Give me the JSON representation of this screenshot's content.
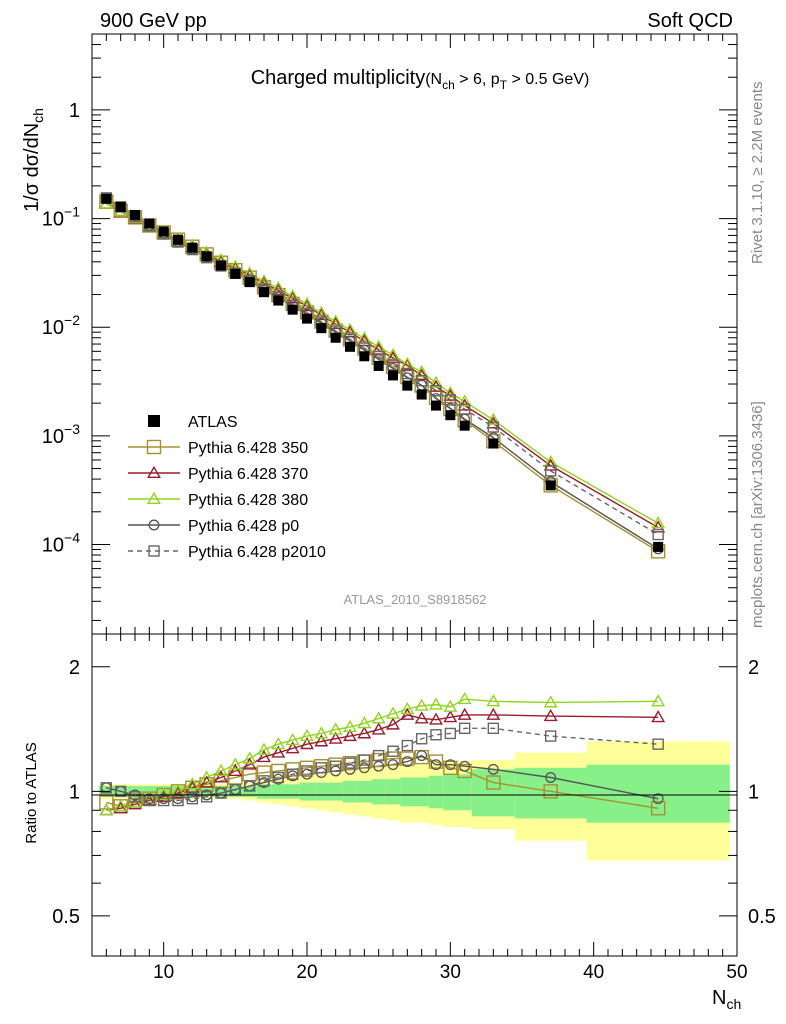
{
  "header": {
    "left": "900 GeV pp",
    "right": "Soft QCD"
  },
  "side": {
    "top": "Rivet 3.1.10, ≥ 2.2M events",
    "bottom": "mcplots.cern.ch [arXiv:1306.3436]"
  },
  "chart_data": {
    "type": "scatter",
    "title": {
      "main": "Charged multiplicity",
      "cond": "(N",
      "cond_sub1": "ch",
      "cond_mid": " > 6, p",
      "cond_sub2": "T",
      "cond_end": " > 0.5 GeV)"
    },
    "analysis_label": "ATLAS_2010_S8918562",
    "ylabel_main": "1/σ dσ/dN",
    "ylabel_sub": "ch",
    "ylabel_ratio": "Ratio to ATLAS",
    "xlabel_main": "N",
    "xlabel_sub": "ch",
    "xlim": [
      5,
      50
    ],
    "ylim_main": [
      1.5e-05,
      5
    ],
    "ylog_main": true,
    "ylim_ratio": [
      0.4,
      2.4
    ],
    "ylog_ratio": true,
    "x_ticks": [
      "10",
      "20",
      "30",
      "40",
      "50"
    ],
    "y_ticks_main": [
      {
        "base": "10",
        "exp": "−4"
      },
      {
        "base": "10",
        "exp": "−3"
      },
      {
        "base": "10",
        "exp": "−2"
      },
      {
        "base": "10",
        "exp": "−1"
      },
      {
        "base": "1",
        "exp": ""
      }
    ],
    "y_ticks_ratio": [
      "0.5",
      "1",
      "2"
    ],
    "x": [
      6,
      7,
      8,
      9,
      10,
      11,
      12,
      13,
      14,
      15,
      16,
      17,
      18,
      19,
      20,
      21,
      22,
      23,
      24,
      25,
      26,
      27,
      28,
      29,
      30,
      31,
      33,
      37,
      44.5
    ],
    "series": [
      {
        "name": "ATLAS",
        "color": "#000000",
        "marker": "square-filled",
        "line": "none",
        "values": [
          0.152,
          0.128,
          0.108,
          0.09,
          0.076,
          0.064,
          0.054,
          0.045,
          0.037,
          0.031,
          0.026,
          0.021,
          0.0176,
          0.0145,
          0.012,
          0.0098,
          0.008,
          0.0066,
          0.0054,
          0.0044,
          0.0036,
          0.0029,
          0.0024,
          0.0019,
          0.00155,
          0.00124,
          0.00085,
          0.00035,
          9.5e-05
        ]
      },
      {
        "name": "Pythia 6.428 350",
        "color": "#a89030",
        "marker": "square-open",
        "line": "solid",
        "ratio": [
          0.94,
          0.92,
          0.95,
          0.96,
          0.98,
          1.0,
          1.02,
          1.04,
          1.06,
          1.08,
          1.1,
          1.11,
          1.12,
          1.13,
          1.14,
          1.15,
          1.16,
          1.17,
          1.18,
          1.19,
          1.2,
          1.2,
          1.21,
          1.18,
          1.14,
          1.12,
          1.05,
          1.0,
          0.91
        ]
      },
      {
        "name": "Pythia 6.428 370",
        "color": "#9b1b30",
        "marker": "triangle-open",
        "line": "solid",
        "ratio": [
          0.9,
          0.91,
          0.93,
          0.95,
          0.97,
          0.99,
          1.02,
          1.05,
          1.08,
          1.12,
          1.16,
          1.21,
          1.24,
          1.27,
          1.3,
          1.32,
          1.34,
          1.36,
          1.38,
          1.41,
          1.45,
          1.53,
          1.5,
          1.49,
          1.51,
          1.53,
          1.53,
          1.52,
          1.51
        ]
      },
      {
        "name": "Pythia 6.428 380",
        "color": "#8fd61e",
        "marker": "triangle-open",
        "line": "solid",
        "ratio": [
          0.9,
          0.92,
          0.94,
          0.96,
          0.98,
          1.0,
          1.04,
          1.08,
          1.12,
          1.16,
          1.2,
          1.26,
          1.3,
          1.33,
          1.36,
          1.38,
          1.41,
          1.43,
          1.46,
          1.5,
          1.54,
          1.58,
          1.61,
          1.62,
          1.6,
          1.67,
          1.65,
          1.64,
          1.65
        ]
      },
      {
        "name": "Pythia 6.428 p0",
        "color": "#555555",
        "marker": "circle-open",
        "line": "solid",
        "ratio": [
          1.02,
          1.0,
          0.98,
          0.96,
          0.96,
          0.96,
          0.97,
          0.98,
          0.99,
          1.01,
          1.03,
          1.05,
          1.07,
          1.09,
          1.1,
          1.11,
          1.12,
          1.13,
          1.14,
          1.15,
          1.16,
          1.18,
          1.22,
          1.16,
          1.16,
          1.15,
          1.13,
          1.08,
          0.96
        ]
      },
      {
        "name": "Pythia 6.428 p2010",
        "color": "#666666",
        "marker": "square-open",
        "line": "dashed",
        "ratio": [
          1.02,
          1.0,
          0.97,
          0.95,
          0.95,
          0.95,
          0.96,
          0.97,
          0.99,
          1.01,
          1.03,
          1.06,
          1.08,
          1.1,
          1.12,
          1.14,
          1.15,
          1.17,
          1.19,
          1.22,
          1.25,
          1.29,
          1.34,
          1.37,
          1.38,
          1.42,
          1.42,
          1.36,
          1.3
        ]
      }
    ],
    "band_edges": [
      5.5,
      6.5,
      7.5,
      8.5,
      9.5,
      10.5,
      11.5,
      12.5,
      13.5,
      14.5,
      15.5,
      16.5,
      17.5,
      18.5,
      19.5,
      20.5,
      21.5,
      22.5,
      23.5,
      24.5,
      25.5,
      26.5,
      27.5,
      28.5,
      29.5,
      30.5,
      31.5,
      34.5,
      39.5,
      49.5
    ],
    "band_stat": [
      0.03,
      0.03,
      0.03,
      0.03,
      0.03,
      0.03,
      0.03,
      0.03,
      0.03,
      0.03,
      0.03,
      0.04,
      0.04,
      0.04,
      0.05,
      0.05,
      0.05,
      0.06,
      0.06,
      0.07,
      0.07,
      0.08,
      0.08,
      0.09,
      0.1,
      0.1,
      0.13,
      0.14,
      0.16
    ],
    "band_total": [
      0.04,
      0.04,
      0.04,
      0.04,
      0.04,
      0.04,
      0.04,
      0.04,
      0.04,
      0.04,
      0.05,
      0.06,
      0.07,
      0.08,
      0.09,
      0.1,
      0.11,
      0.12,
      0.13,
      0.14,
      0.15,
      0.16,
      0.16,
      0.17,
      0.18,
      0.18,
      0.19,
      0.24,
      0.32
    ],
    "colors": {
      "band_stat": "#88f088",
      "band_total": "#ffff99"
    }
  }
}
